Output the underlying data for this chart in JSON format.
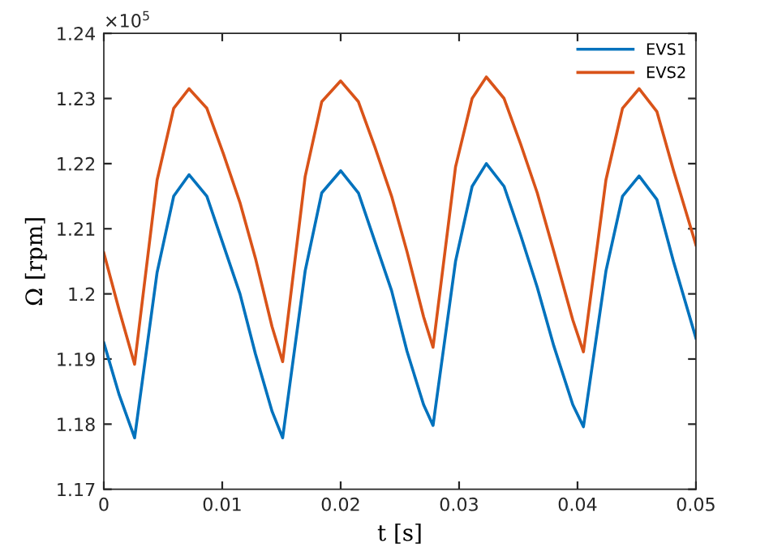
{
  "chart_data": {
    "type": "line",
    "xlabel": "t [s]",
    "ylabel": "Ω [rpm]",
    "annotations": [
      "×10$^{5}$"
    ],
    "x": [
      0,
      0.0013,
      0.0026,
      0.0045,
      0.0059,
      0.0072,
      0.0087,
      0.0101,
      0.0115,
      0.0128,
      0.0142,
      0.0151,
      0.017,
      0.0184,
      0.02,
      0.0215,
      0.0229,
      0.0243,
      0.0256,
      0.027,
      0.0278,
      0.0297,
      0.0311,
      0.0323,
      0.0338,
      0.0352,
      0.0366,
      0.038,
      0.0396,
      0.0405,
      0.0424,
      0.0438,
      0.0452,
      0.0467,
      0.0481,
      0.05
    ],
    "series": [
      {
        "name": "EVS1",
        "color": "#0072bd",
        "values": [
          1.1925,
          1.1845,
          1.1779,
          1.2033,
          1.215,
          1.2183,
          1.215,
          1.2075,
          1.2,
          1.1908,
          1.182,
          1.1779,
          1.2035,
          1.2155,
          1.2189,
          1.2155,
          1.208,
          1.2005,
          1.1912,
          1.183,
          1.1798,
          1.205,
          1.2165,
          1.22,
          1.2165,
          1.209,
          1.201,
          1.192,
          1.183,
          1.1796,
          1.2035,
          1.215,
          1.2181,
          1.2145,
          1.205,
          1.1932
        ]
      },
      {
        "name": "EVS2",
        "color": "#d95319",
        "values": [
          1.2063,
          1.1975,
          1.1892,
          1.2175,
          1.2285,
          1.2315,
          1.2285,
          1.2215,
          1.214,
          1.2055,
          1.195,
          1.1896,
          1.218,
          1.2295,
          1.2327,
          1.2295,
          1.2225,
          1.215,
          1.2065,
          1.1965,
          1.1918,
          1.2195,
          1.23,
          1.2333,
          1.23,
          1.223,
          1.2155,
          1.2065,
          1.196,
          1.1911,
          1.2175,
          1.2285,
          1.2315,
          1.228,
          1.219,
          1.2075
        ]
      }
    ],
    "xlim": [
      0,
      0.05
    ],
    "xticks": [
      0,
      0.01,
      0.02,
      0.03,
      0.04,
      0.05
    ],
    "ylim": [
      1.17,
      1.24
    ],
    "yticks": [
      1.17,
      1.18,
      1.19,
      1.2,
      1.21,
      1.22,
      1.23,
      1.24
    ],
    "legend": "top right",
    "grid": false
  }
}
